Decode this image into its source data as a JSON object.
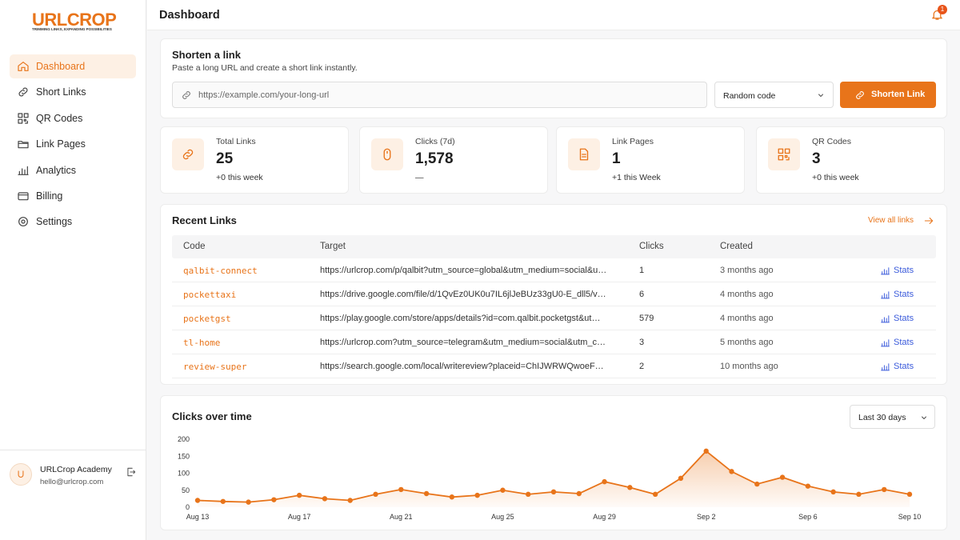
{
  "sidebar": {
    "brand": "URLCROP",
    "tagline": "TRIMMING LINKS, EXPANDING POSSIBILITIES",
    "nav": [
      "Dashboard",
      "Short Links",
      "QR Codes",
      "Link Pages",
      "Analytics",
      "Billing",
      "Settings"
    ],
    "user": {
      "name": "URLCrop Academy",
      "email": "hello@urlcrop.com"
    }
  },
  "header": {
    "title": "Dashboard",
    "notifications": 1
  },
  "shorten": {
    "title": "Shorten a link",
    "subtitle": "Paste a long URL and create a short link instantly.",
    "placeholder": "https://example.com/your-long-url",
    "code_option": "Random code",
    "button": "Shorten Link"
  },
  "stats": [
    {
      "label": "Total Links",
      "value": 25,
      "note": "+0 this week"
    },
    {
      "label": "Clicks (7d)",
      "value": "1,578",
      "note": "—"
    },
    {
      "label": "Link Pages",
      "value": 1,
      "note": "+1 this Week"
    },
    {
      "label": "QR Codes",
      "value": 3,
      "note": "+0 this week"
    }
  ],
  "recent": {
    "title": "Recent Links",
    "link": "View all links",
    "columns": [
      "Code",
      "Target",
      "Clicks",
      "Created"
    ],
    "action": "Stats",
    "rows": [
      [
        "qalbit-connect",
        "https://urlcrop.com/p/qalbit?utm_source=global&utm_medium=social&u…",
        1,
        "3 months ago"
      ],
      [
        "pockettaxi",
        "https://drive.google.com/file/d/1QvEz0UK0u7IL6jlJeBUz33gU0-E_dll5/v…",
        6,
        "4 months ago"
      ],
      [
        "pocketgst",
        "https://play.google.com/store/apps/details?id=com.qalbit.pocketgst&ut…",
        579,
        "4 months ago"
      ],
      [
        "tl-home",
        "https://urlcrop.com?utm_source=telegram&utm_medium=social&utm_c…",
        3,
        "5 months ago"
      ],
      [
        "review-super",
        "https://search.google.com/local/writereview?placeid=ChIJWRWQwoeF…",
        2,
        "10 months ago"
      ]
    ]
  },
  "chart_data": {
    "type": "line",
    "title": "Clicks over time",
    "range": "Last 30 days",
    "color": "#e8741a",
    "categories": [
      "Aug 13",
      null,
      null,
      null,
      "Aug 17",
      null,
      null,
      null,
      "Aug 21",
      null,
      null,
      null,
      "Aug 25",
      null,
      null,
      null,
      "Aug 29",
      null,
      null,
      null,
      "Sep 2",
      null,
      null,
      null,
      "Sep 6",
      null,
      null,
      null,
      "Sep 10"
    ],
    "values": [
      20,
      17,
      15,
      22,
      35,
      25,
      20,
      38,
      52,
      40,
      30,
      35,
      50,
      38,
      45,
      40,
      75,
      58,
      38,
      85,
      165,
      105,
      68,
      88,
      62,
      45,
      38,
      52,
      38
    ],
    "ylim": [
      0,
      200
    ],
    "yticks": [
      0,
      50,
      100,
      150,
      200
    ]
  }
}
